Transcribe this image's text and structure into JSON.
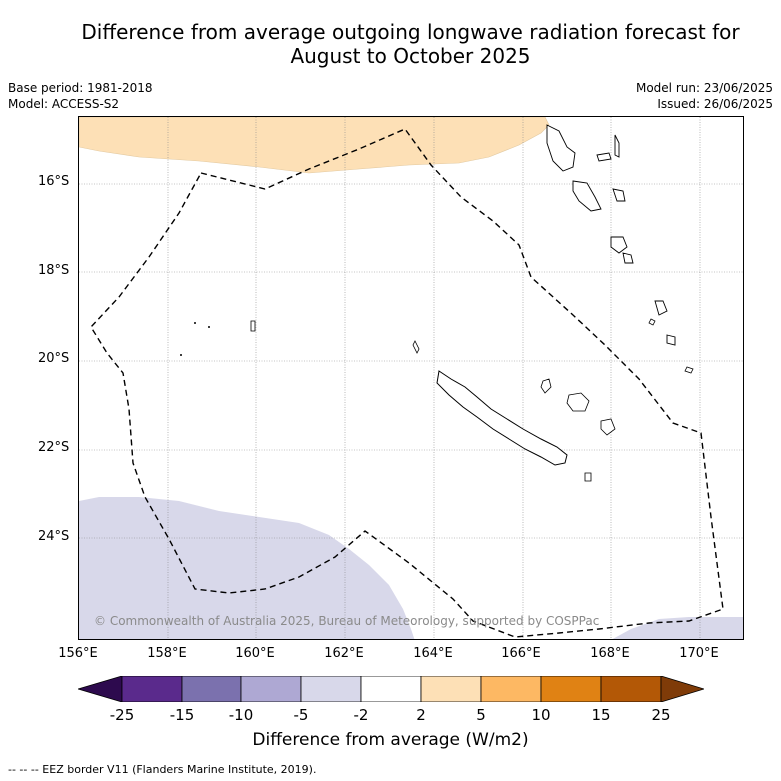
{
  "title_line1": "Difference from average outgoing longwave radiation forecast for",
  "title_line2": "August to October 2025",
  "base_period": "Base period: 1981-2018",
  "model": "Model: ACCESS-S2",
  "model_run": "Model run: 23/06/2025",
  "issued": "Issued: 26/06/2025",
  "copyright": "© Commonwealth of Australia 2025, Bureau of Meteorology, supported by COSPPac",
  "lat_labels": [
    "16°S",
    "18°S",
    "20°S",
    "22°S",
    "24°S"
  ],
  "lon_labels": [
    "156°E",
    "158°E",
    "160°E",
    "162°E",
    "164°E",
    "166°E",
    "168°E",
    "170°E"
  ],
  "colorbar": {
    "ticks": [
      "-25",
      "-15",
      "-10",
      "-5",
      "-2",
      "2",
      "5",
      "10",
      "15",
      "25"
    ],
    "colors": [
      "#2d0a4e",
      "#5a2a8c",
      "#7b71ae",
      "#aea8d3",
      "#d8d8ea",
      "#ffffff",
      "#fde0b6",
      "#fdb863",
      "#e08214",
      "#b35806",
      "#7f3b08"
    ],
    "title": "Difference from average (W/m2)"
  },
  "legend_note": "-- -- -- EEZ border V11 (Flanders Marine Institute, 2019).",
  "colors": {
    "positive_anomaly": "#fde0b6",
    "negative_anomaly": "#d8d8ea",
    "eez_border": "#000000",
    "grid": "#8a8a8a"
  }
}
